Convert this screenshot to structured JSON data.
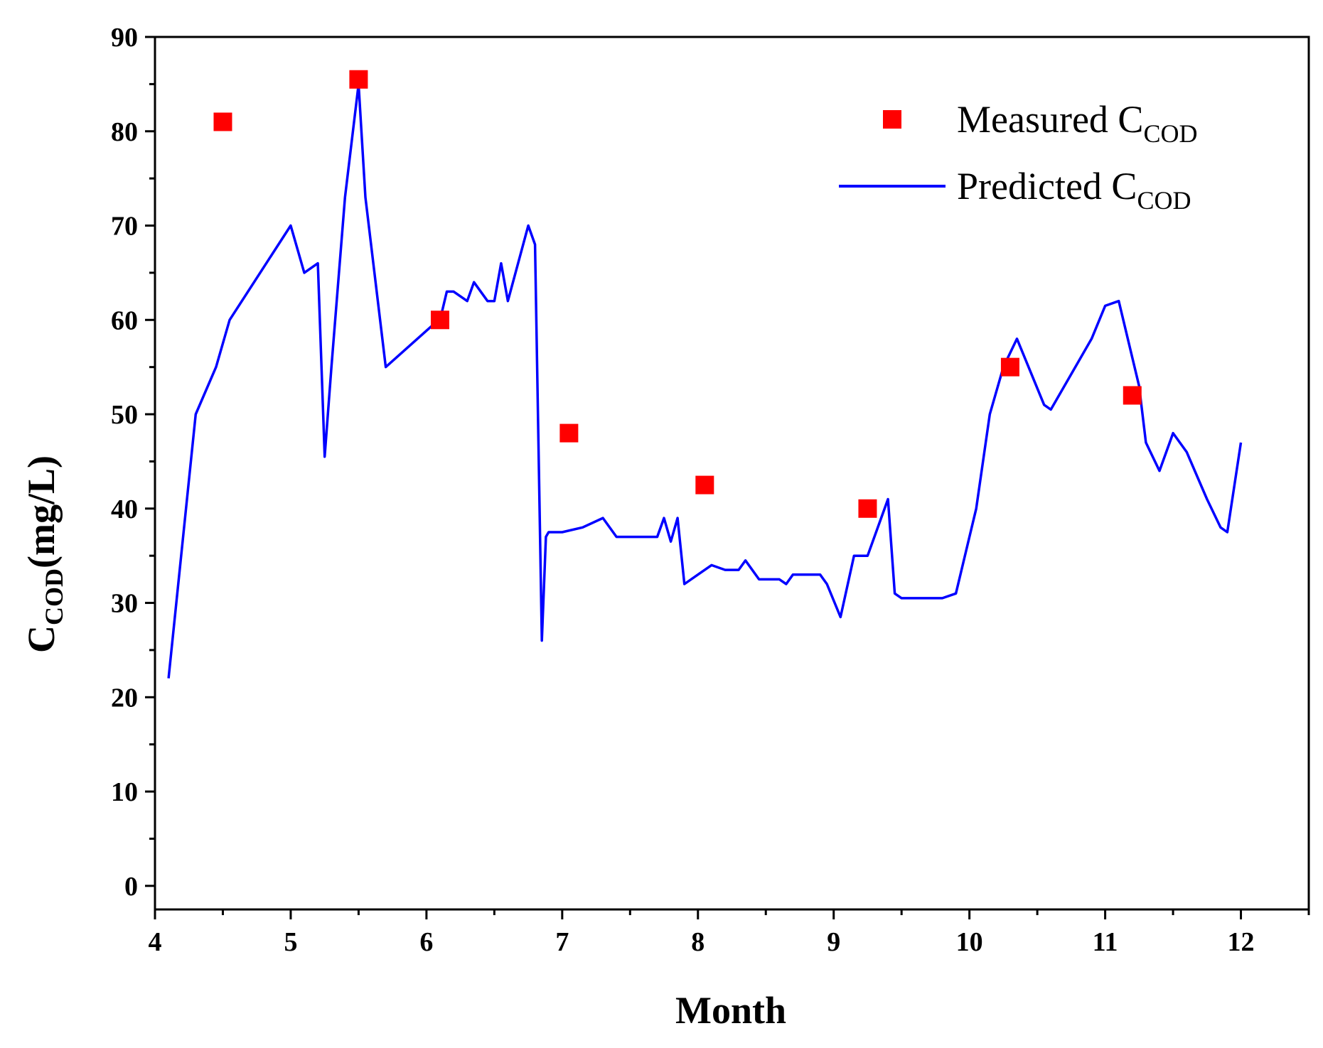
{
  "chart_data": {
    "type": "line",
    "title": "",
    "xlabel": "Month",
    "ylabel": {
      "main": "C",
      "sub": "COD",
      "unit": "(mg/L)"
    },
    "xlim": [
      4,
      12.5
    ],
    "ylim": [
      -2.5,
      90
    ],
    "xticks": [
      4,
      5,
      6,
      7,
      8,
      9,
      10,
      11,
      12
    ],
    "yticks": [
      0,
      10,
      20,
      30,
      40,
      50,
      60,
      70,
      80,
      90
    ],
    "grid": false,
    "legend_position": "top-right",
    "series": [
      {
        "name": "Measured C",
        "name_sub": "COD",
        "kind": "scatter",
        "marker": "square",
        "color": "#ff0000",
        "x": [
          4.5,
          5.5,
          6.1,
          7.05,
          8.05,
          9.25,
          10.3,
          11.2
        ],
        "y": [
          81,
          85.5,
          60,
          48,
          42.5,
          40,
          55,
          52
        ]
      },
      {
        "name": "Predicted C",
        "name_sub": "COD",
        "kind": "line",
        "color": "#0000ff",
        "x": [
          4.1,
          4.3,
          4.45,
          4.55,
          5.0,
          5.1,
          5.2,
          5.25,
          5.3,
          5.4,
          5.5,
          5.55,
          5.7,
          6.05,
          6.1,
          6.15,
          6.2,
          6.3,
          6.35,
          6.45,
          6.5,
          6.55,
          6.6,
          6.75,
          6.8,
          6.85,
          6.88,
          6.9,
          7.0,
          7.15,
          7.3,
          7.4,
          7.5,
          7.6,
          7.7,
          7.75,
          7.8,
          7.85,
          7.9,
          8.0,
          8.1,
          8.2,
          8.3,
          8.35,
          8.45,
          8.6,
          8.65,
          8.7,
          8.8,
          8.9,
          8.95,
          9.05,
          9.15,
          9.25,
          9.4,
          9.45,
          9.5,
          9.6,
          9.8,
          9.9,
          10.05,
          10.15,
          10.25,
          10.35,
          10.55,
          10.6,
          10.9,
          11.0,
          11.1,
          11.25,
          11.3,
          11.4,
          11.5,
          11.6,
          11.75,
          11.85,
          11.9,
          12.0
        ],
        "y": [
          22,
          50,
          55,
          60,
          70,
          65,
          66,
          45.5,
          55,
          73,
          85,
          73,
          55,
          59.5,
          60,
          63,
          63,
          62,
          64,
          62,
          62,
          66,
          62,
          70,
          68,
          26,
          37,
          37.5,
          37.5,
          38,
          39,
          37,
          37,
          37,
          37,
          39,
          36.5,
          39,
          32,
          33,
          34,
          33.5,
          33.5,
          34.5,
          32.5,
          32.5,
          32,
          33,
          33,
          33,
          32,
          28.5,
          35,
          35,
          41,
          31,
          30.5,
          30.5,
          30.5,
          31,
          40,
          50,
          55,
          58,
          51,
          50.5,
          58,
          61.5,
          62,
          53,
          47,
          44,
          48,
          46,
          41,
          38,
          37.5,
          47
        ]
      }
    ]
  }
}
